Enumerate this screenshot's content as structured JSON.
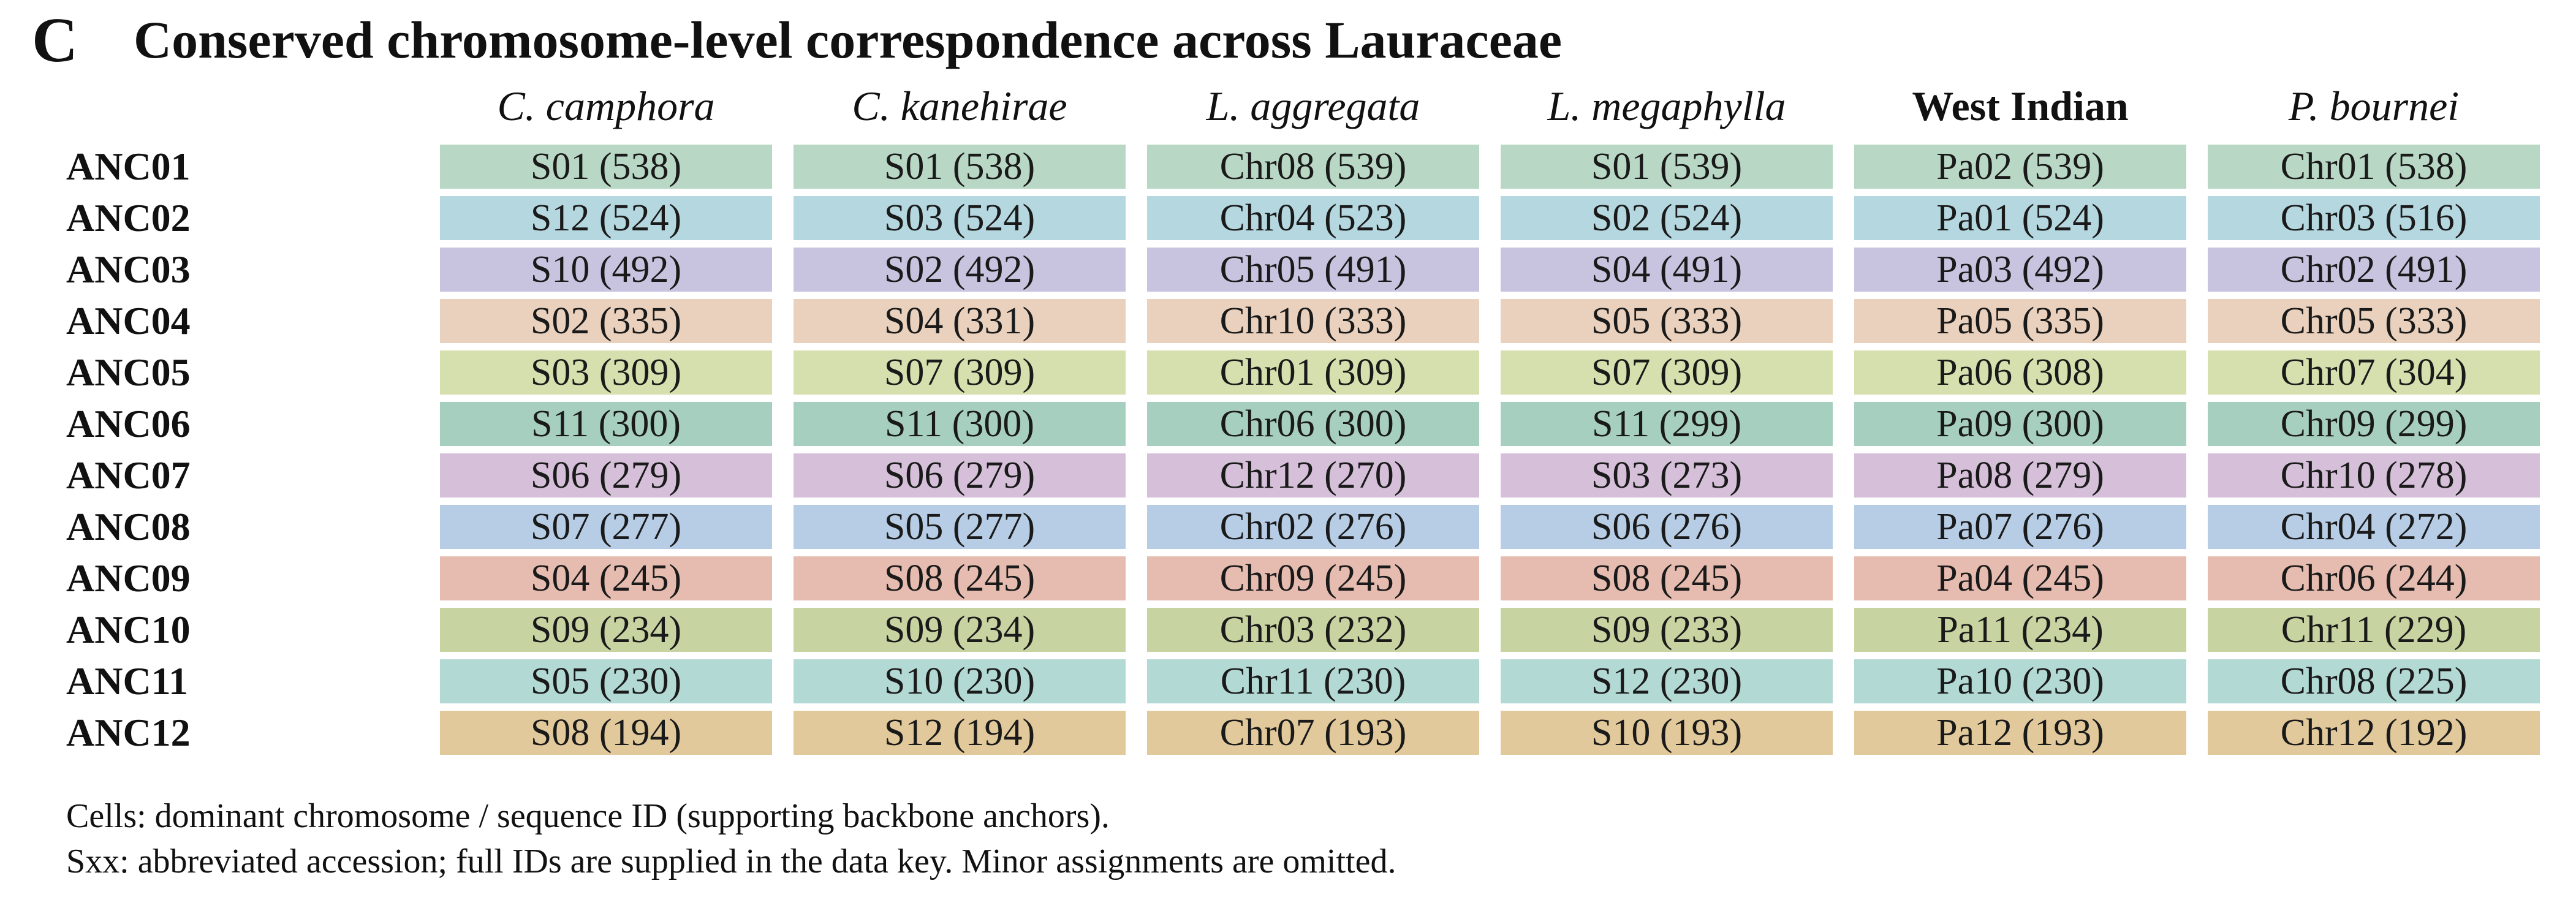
{
  "panel_label": "C",
  "chart_data": {
    "type": "table",
    "title": "Conserved chromosome-level correspondence across Lauraceae",
    "columns": [
      {
        "label": "C. camphora",
        "style": "italic"
      },
      {
        "label": "C. kanehirae",
        "style": "italic"
      },
      {
        "label": "L. aggregata",
        "style": "italic"
      },
      {
        "label": "L. megaphylla",
        "style": "italic"
      },
      {
        "label": "West Indian",
        "style": "bold"
      },
      {
        "label": "P. bournei",
        "style": "italic"
      }
    ],
    "rows": [
      {
        "label": "ANC01",
        "color": "#b8d8c5",
        "cells": [
          "S01 (538)",
          "S01 (538)",
          "Chr08 (539)",
          "S01 (539)",
          "Pa02 (539)",
          "Chr01 (538)"
        ]
      },
      {
        "label": "ANC02",
        "color": "#b5d7df",
        "cells": [
          "S12 (524)",
          "S03 (524)",
          "Chr04 (523)",
          "S02 (524)",
          "Pa01 (524)",
          "Chr03 (516)"
        ]
      },
      {
        "label": "ANC03",
        "color": "#c8c4e0",
        "cells": [
          "S10 (492)",
          "S02 (492)",
          "Chr05 (491)",
          "S04 (491)",
          "Pa03 (492)",
          "Chr02 (491)"
        ]
      },
      {
        "label": "ANC04",
        "color": "#e9d1bd",
        "cells": [
          "S02 (335)",
          "S04 (331)",
          "Chr10 (333)",
          "S05 (333)",
          "Pa05 (335)",
          "Chr05 (333)"
        ]
      },
      {
        "label": "ANC05",
        "color": "#d6e0ae",
        "cells": [
          "S03 (309)",
          "S07 (309)",
          "Chr01 (309)",
          "S07 (309)",
          "Pa06 (308)",
          "Chr07 (304)"
        ]
      },
      {
        "label": "ANC06",
        "color": "#a7cfc0",
        "cells": [
          "S11 (300)",
          "S11 (300)",
          "Chr06 (300)",
          "S11 (299)",
          "Pa09 (300)",
          "Chr09 (299)"
        ]
      },
      {
        "label": "ANC07",
        "color": "#d5bfd9",
        "cells": [
          "S06 (279)",
          "S06 (279)",
          "Chr12 (270)",
          "S03 (273)",
          "Pa08 (279)",
          "Chr10 (278)"
        ]
      },
      {
        "label": "ANC08",
        "color": "#b7cde6",
        "cells": [
          "S07 (277)",
          "S05 (277)",
          "Chr02 (276)",
          "S06 (276)",
          "Pa07 (276)",
          "Chr04 (272)"
        ]
      },
      {
        "label": "ANC09",
        "color": "#e7bcb0",
        "cells": [
          "S04 (245)",
          "S08 (245)",
          "Chr09 (245)",
          "S08 (245)",
          "Pa04 (245)",
          "Chr06 (244)"
        ]
      },
      {
        "label": "ANC10",
        "color": "#c7d4a2",
        "cells": [
          "S09 (234)",
          "S09 (234)",
          "Chr03 (232)",
          "S09 (233)",
          "Pa11 (234)",
          "Chr11 (229)"
        ]
      },
      {
        "label": "ANC11",
        "color": "#b3d9d4",
        "cells": [
          "S05 (230)",
          "S10 (230)",
          "Chr11 (230)",
          "S12 (230)",
          "Pa10 (230)",
          "Chr08 (225)"
        ]
      },
      {
        "label": "ANC12",
        "color": "#e1c99b",
        "cells": [
          "S08 (194)",
          "S12 (194)",
          "Chr07 (193)",
          "S10 (193)",
          "Pa12 (193)",
          "Chr12 (192)"
        ]
      }
    ]
  },
  "footnotes": [
    "Cells: dominant chromosome / sequence ID (supporting backbone anchors).",
    "Sxx: abbreviated accession; full IDs are supplied in the data key. Minor assignments are omitted."
  ]
}
